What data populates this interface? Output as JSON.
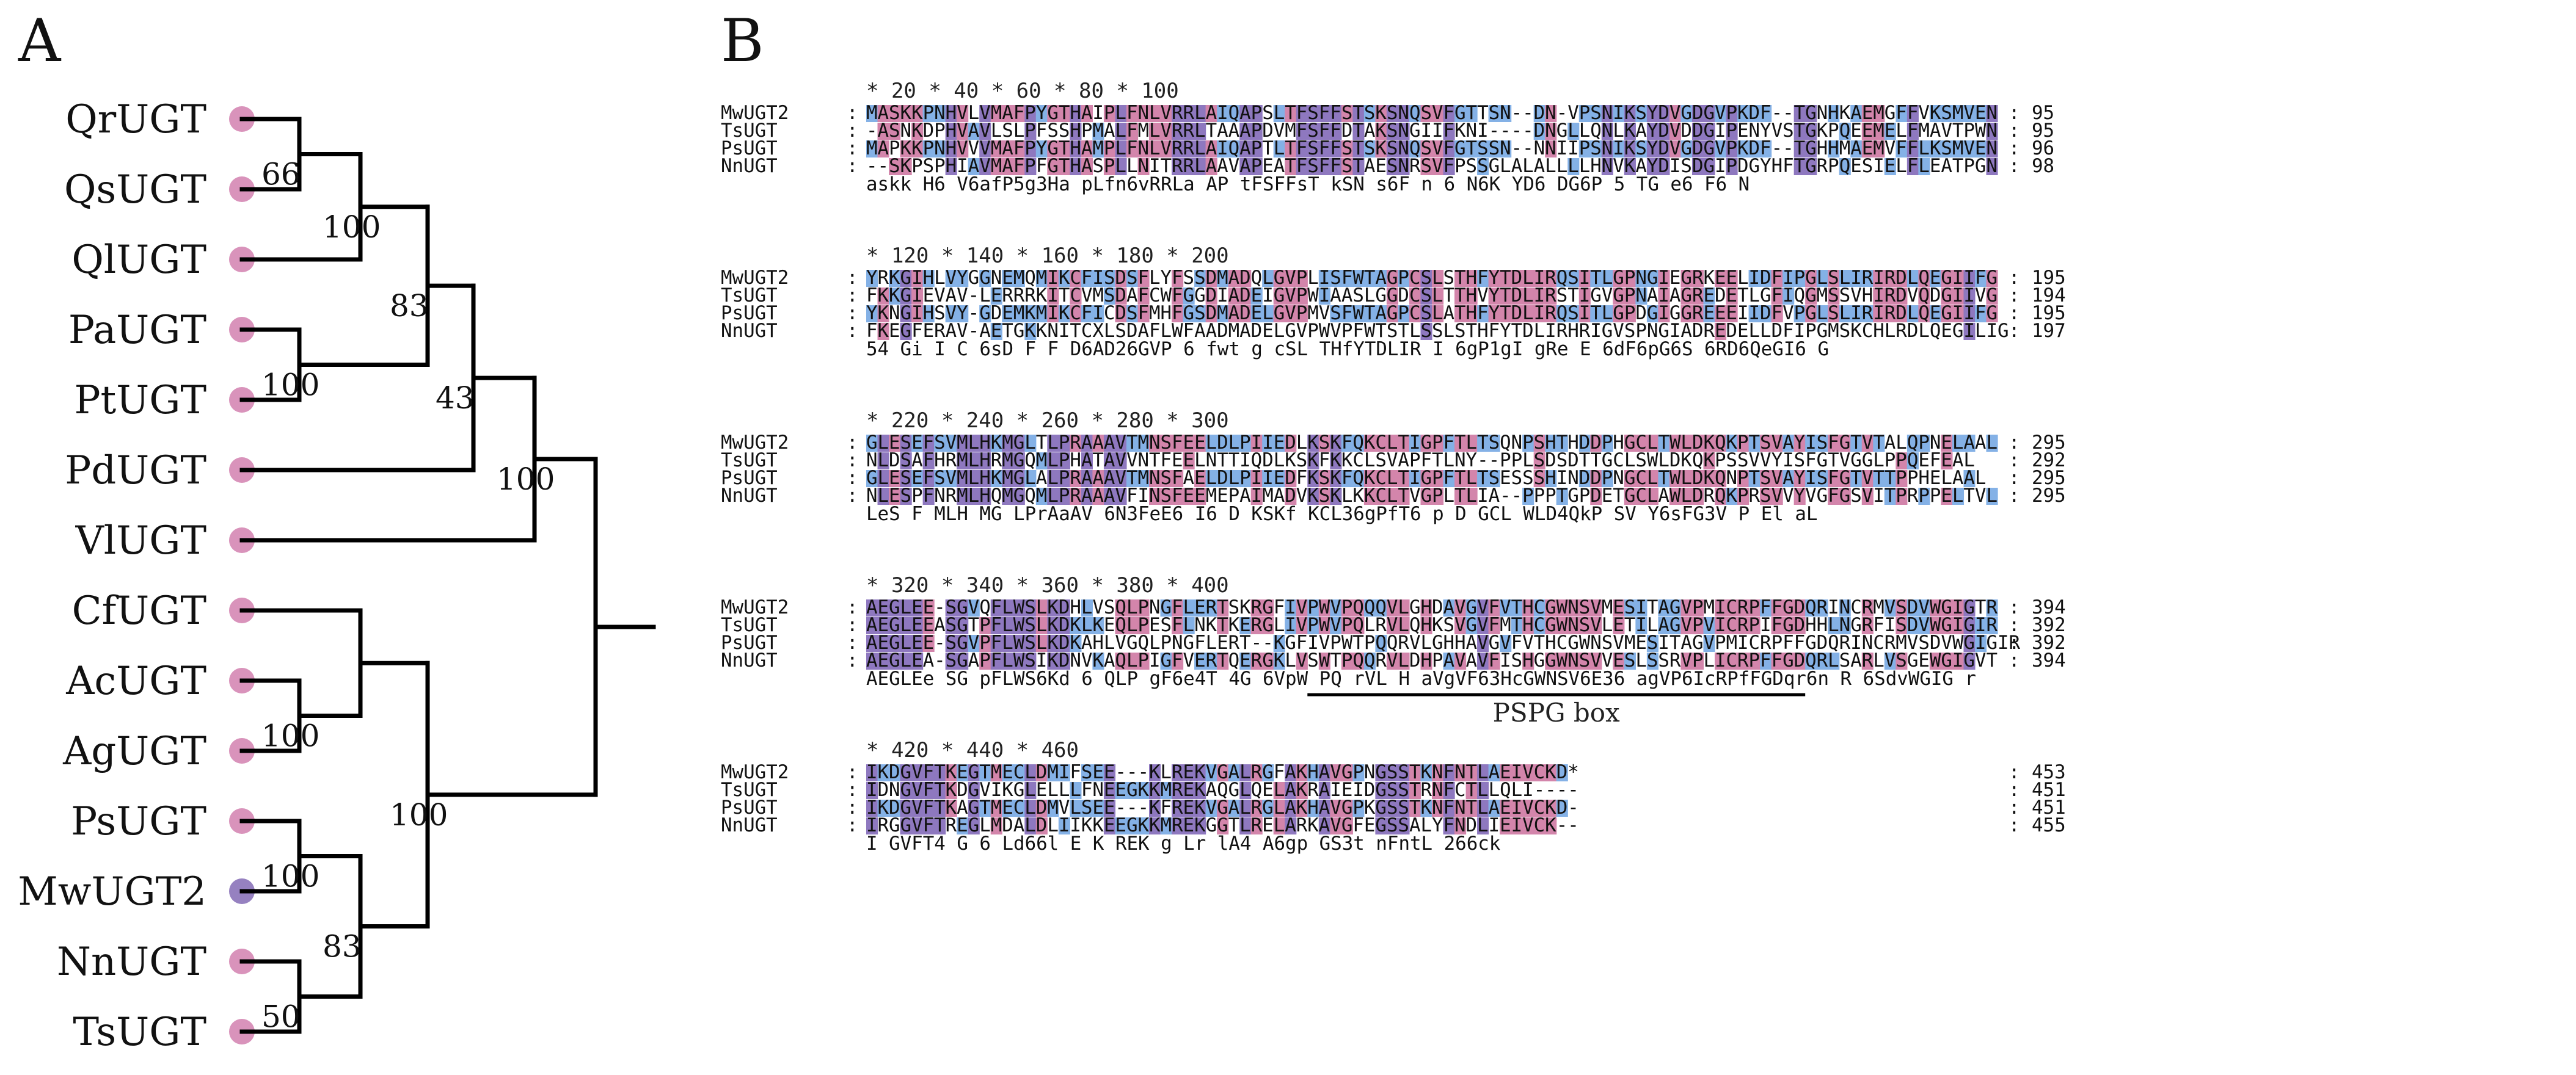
{
  "figure": {
    "panel_a_label": "A",
    "panel_b_label": "B"
  },
  "colors": {
    "strict": "#8e78bf",
    "high": "#d385ab",
    "low": "#84b1e6",
    "leaf_default": "#d993bb",
    "leaf_highlight": "#9681c0",
    "branch": "#000000"
  },
  "tree": {
    "leaves": [
      {
        "label": "QrUGT",
        "highlight": false
      },
      {
        "label": "QsUGT",
        "highlight": false
      },
      {
        "label": "QlUGT",
        "highlight": false
      },
      {
        "label": "PaUGT",
        "highlight": false
      },
      {
        "label": "PtUGT",
        "highlight": false
      },
      {
        "label": "PdUGT",
        "highlight": false
      },
      {
        "label": "VlUGT",
        "highlight": false
      },
      {
        "label": "CfUGT",
        "highlight": false
      },
      {
        "label": "AcUGT",
        "highlight": false
      },
      {
        "label": "AgUGT",
        "highlight": false
      },
      {
        "label": "PsUGT",
        "highlight": false
      },
      {
        "label": "MwUGT2",
        "highlight": true
      },
      {
        "label": "NnUGT",
        "highlight": false
      },
      {
        "label": "TsUGT",
        "highlight": false
      }
    ],
    "nodes": [
      {
        "id": "n1",
        "children": [
          "L0",
          "L1"
        ],
        "depth": 1,
        "bootstrap": "66"
      },
      {
        "id": "n2",
        "children": [
          "n1",
          "L2"
        ],
        "depth": 2,
        "bootstrap": "100"
      },
      {
        "id": "n3",
        "children": [
          "L3",
          "L4"
        ],
        "depth": 1,
        "bootstrap": "100"
      },
      {
        "id": "n4",
        "children": [
          "n2",
          "n3"
        ],
        "depth": 3,
        "bootstrap": "83"
      },
      {
        "id": "n5",
        "children": [
          "n4",
          "L5"
        ],
        "depth": 4,
        "bootstrap": "43"
      },
      {
        "id": "n6",
        "children": [
          "n5",
          "L6"
        ],
        "depth": 5,
        "bootstrap": "100"
      },
      {
        "id": "n7",
        "children": [
          "L8",
          "L9"
        ],
        "depth": 1,
        "bootstrap": "100"
      },
      {
        "id": "n8",
        "children": [
          "L7",
          "n7"
        ],
        "depth": 2,
        "bootstrap": null
      },
      {
        "id": "n9",
        "children": [
          "L10",
          "L11"
        ],
        "depth": 1,
        "bootstrap": "100"
      },
      {
        "id": "n10",
        "children": [
          "L12",
          "L13"
        ],
        "depth": 1,
        "bootstrap": "50"
      },
      {
        "id": "n11",
        "children": [
          "n9",
          "n10"
        ],
        "depth": 2,
        "bootstrap": "83"
      },
      {
        "id": "n12",
        "children": [
          "n8",
          "n11"
        ],
        "depth": 3,
        "bootstrap": "100"
      },
      {
        "id": "root",
        "children": [
          "n6",
          "n12"
        ],
        "depth": 6,
        "bootstrap": null
      }
    ]
  },
  "alignment": {
    "sequences": [
      "MwUGT2",
      "TsUGT",
      "PsUGT",
      "NnUGT"
    ],
    "blocks": [
      {
        "ruler": "          *        20         *        40         *        60         *        80         *       100",
        "rows": [
          {
            "name": "MwUGT2",
            "seq": "MASKKPNHVLVMAFPYGTHAIPLFNLVRRLAIQAPSLTFSFFSTSKSNQSVFGTTSN--DN-VPSNIKSYDVGDGVPKDF--TGNHKAEMGFFVKSMVEN",
            "end": "95"
          },
          {
            "name": "TsUGT",
            "seq": "-ASNKDPHVAVLSLPFSSHPMALFMLVRRLTAAAPDVMFSFFDTAKSNGIIFKNI----DNGLLQNLKAYDVDDGIPENYVSTGKPQEEMELFMAVTPWN",
            "end": "95"
          },
          {
            "name": "PsUGT",
            "seq": "MAPKKPNHVVVMAFPYGTHAMPLFNLVRRLAIQAPTLTFSFFSTSKSNQSVFGTSSN--NNIIPSNIKSYDVGDGVPKDF--TGHHMAEMVFFLKSMVEN",
            "end": "96"
          },
          {
            "name": "NnUGT",
            "seq": "--SKPSPHIAVMAFPFGTHASPLLNITRRLAAVAPEATFSFFSTAESNRSVFPSSGLALALLLLHNVKAYDISDGIPDGYHFTGRPQESIELFLEATPGN",
            "end": "98"
          }
        ],
        "consensus": "  askk  H6 V6afP5g3Ha  pLfn6vRRLa   AP   tFSFFsT kSN  s6F          n 6  N6K YD6 DG6P   5  TG    e6  F6     N"
      },
      {
        "ruler": "          *       120         *       140         *       160         *       180         *       200",
        "rows": [
          {
            "name": "MwUGT2",
            "seq": "YRKGIHLVYGGNEMQMIKCFISDSFLYFSSDMADQLGVPLISFWTAGPCSLSTHFYTDLIRQSITLGPNGIEGRKEELIDFIPGLSLIRIRDLQEGIIFG",
            "end": "195"
          },
          {
            "name": "TsUGT",
            "seq": "FKKGIEVAV-LERRRKITCVMSDAFCWFGGDIADEIGVPWIAASLGGDCSLTTHVYTDLIRSTIGVGPNAIAGREDETLGFIQGMSSVHIRDVQDGIIVG",
            "end": "194"
          },
          {
            "name": "PsUGT",
            "seq": "YKNGIHSVY-GDEMKMIKCFICDSFMHFGSDMADELGVPMVSFWTAGPCSLATHFYTDLIRQSITLGPDGIGGREEEIIDFVPGLSLIRIRDLQEGIIFG",
            "end": "195"
          },
          {
            "name": "NnUGT",
            "seq": "FKEGFERAV-AETGKKNITCXLSDAFLWFAADMADELGVPWVPFWTSTLSSLSTHFYTDLIRHRIGVSPNGIADREDELLDFIPGMSKCHLRDLQEGILIG",
            "end": "197"
          }
        ],
        "consensus": "  54 Gi           I C  6sD  F  F   D6AD26GVP  6 fwt g cSL THfYTDLIR   I 6gP1gI  gRe  E 6dF6pG6S    6RD6QeGI6 G"
      },
      {
        "ruler": "          *       220         *       240         *       260         *       280         *       300",
        "rows": [
          {
            "name": "MwUGT2",
            "seq": "GLESEFSVMLHKMGLTLPRAAAVTMNSFEELDLPIIEDLKSKFQKCLTIGPFTLTSQNPSHTHDDPHGCLTWLDKQKPTSVAYISFGTVTALQPNELAAL",
            "end": "295"
          },
          {
            "name": "TsUGT",
            "seq": "NLDSAFHRMLHRMGQMLPHATAVVNTFEELNTTIQDLKSKFKKCLSVAPFTLNY--PPLSDSDTTGCLSWLDKQKPSSVVYISFGTVGGLPPQEFEAL",
            "end": "292"
          },
          {
            "name": "PsUGT",
            "seq": "GLESEFSVMLHKMGLALPRAAAVTMNSFAELDLPIIEDFKSKFQKCLTIGPFTLTSESSSHINDDPNGCLTWLDKQNPTSVAYISFGTVTTPPHELAAL",
            "end": "295"
          },
          {
            "name": "NnUGT",
            "seq": "NLESPFNRMLHQMGQMLPRAAAVFINSFEEMEPAIMADVKSKLKKCLTVGPLTLIA--PPPTGPDETGCLAWLDRQKPRSVVYVGFGSVITPRPPELTVL",
            "end": "295"
          }
        ],
        "consensus": "   LeS F   MLH MG   LPrAaAV  6N3FeE6    I6 D KSKf KCL36gPfT6      p       D   GCL WLD4QkP SV Y6sFG3V     P El aL"
      },
      {
        "ruler": "          *       320         *       340         *       360         *       380         *       400",
        "rows": [
          {
            "name": "MwUGT2",
            "seq": "AEGLEE-SGVQFLWSLKDHLVSQLPNGFLERTSKRGFIVPWVPQQQVLGHDAVGVFVTHCGWNSVMESITAGVPMICRPFFGDQRINCRMVSDVWGIGTR",
            "end": "394"
          },
          {
            "name": "TsUGT",
            "seq": "AEGLEEASGTPFLWSLKDKLKEQLPESFLNKTKERGLIVPWVPQLRVLQHKSVGVFMTHCGWNSVLETILAGVPVICRPIFGDHHLNGRFISDVWGIGIR",
            "end": "392"
          },
          {
            "name": "PsUGT",
            "seq": "AEGLEE-SGVPFLWSLKDKAHLVGQLPNGFLERT--KGFIVPWTPQQRVLGHHAVGVFVTHCGWNSVMESITAGVPMICRPFFGDQRINCRMVSDVWGIGIR",
            "end": "392"
          },
          {
            "name": "NnUGT",
            "seq": "AEGLEA-SGAPFLWSIKDNVKAQLPIGFVERTQERGKLVSWTPQQRVLDHPAVAVFISHGGWNSVVESLSSRVPLICRPFFGDQRLSARLVSGEWGIGVT",
            "end": "394"
          }
        ],
        "consensus": "   AEGLEe SG pFLWS6Kd 6    QLP gF6e4T   4G 6VpW PQ rVL H aVgVF63HcGWNSV6E36 agVP6IcRPfFGDqr6n  R 6SdvWGIG r"
      },
      {
        "ruler": "          *       420         *       440         *       460",
        "rows": [
          {
            "name": "MwUGT2",
            "seq": "IKDGVFTKEGTMECLDMIFSEE---KLREKVGALRGFAKHAVGPNGSSTKNFNTLAEIVCKD*",
            "end": "453"
          },
          {
            "name": "TsUGT",
            "seq": "IDNGVFTKDGVIKGLELLLFNEEGKKMREKAQGLQELAKRAIEIDGSSTRNFCTLLQLI----",
            "end": "451"
          },
          {
            "name": "PsUGT",
            "seq": "IKDGVFTKAGTMECLDMVLSEE---KFREKVGALRGLAKHAVGPKGSSTKNFNTLAEIVCKD-",
            "end": "451"
          },
          {
            "name": "NnUGT",
            "seq": "IRGGVFTREGLMDALDLIIKKEEGKKMREKGGTLRELARKAVGFEGSSALYFNDLIEIVCK--",
            "end": "455"
          }
        ],
        "consensus": "   I  GVFT4 G 6   Ld66l   E    K REK  g Lr  lA4  A6gp  GS3t  nFntL  266ck"
      }
    ],
    "motif": {
      "label": "PSPG box",
      "block": 3,
      "start": 39,
      "end": 82
    }
  }
}
